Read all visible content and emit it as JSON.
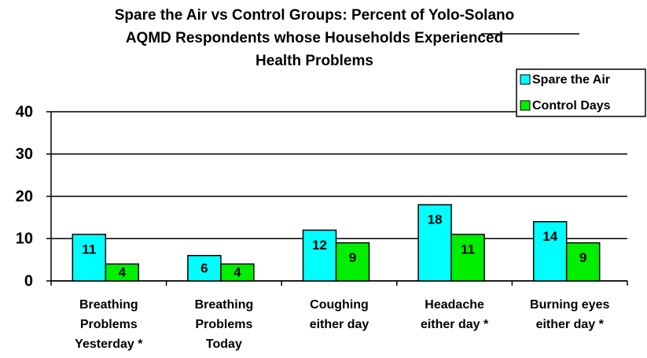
{
  "chart_data": {
    "type": "bar",
    "title_lines": [
      "Spare the Air vs Control Groups:  Percent of Yolo-Solano",
      "AQMD Respondents whose Households Experienced",
      "Health Problems"
    ],
    "categories": [
      [
        "Breathing",
        "Problems",
        "Yesterday *"
      ],
      [
        "Breathing",
        "Problems",
        "Today"
      ],
      [
        "Coughing",
        "either day"
      ],
      [
        "Headache",
        "either day *"
      ],
      [
        "Burning eyes",
        "either day *"
      ]
    ],
    "series": [
      {
        "name": "Spare the Air",
        "color": "#00ffff",
        "values": [
          11,
          6,
          12,
          18,
          14
        ]
      },
      {
        "name": "Control Days",
        "color": "#00ee00",
        "values": [
          4,
          4,
          9,
          11,
          9
        ]
      }
    ],
    "ylim": [
      0,
      40
    ],
    "yticks": [
      0,
      10,
      20,
      30,
      40
    ],
    "grid": true,
    "legend": "top-right"
  }
}
